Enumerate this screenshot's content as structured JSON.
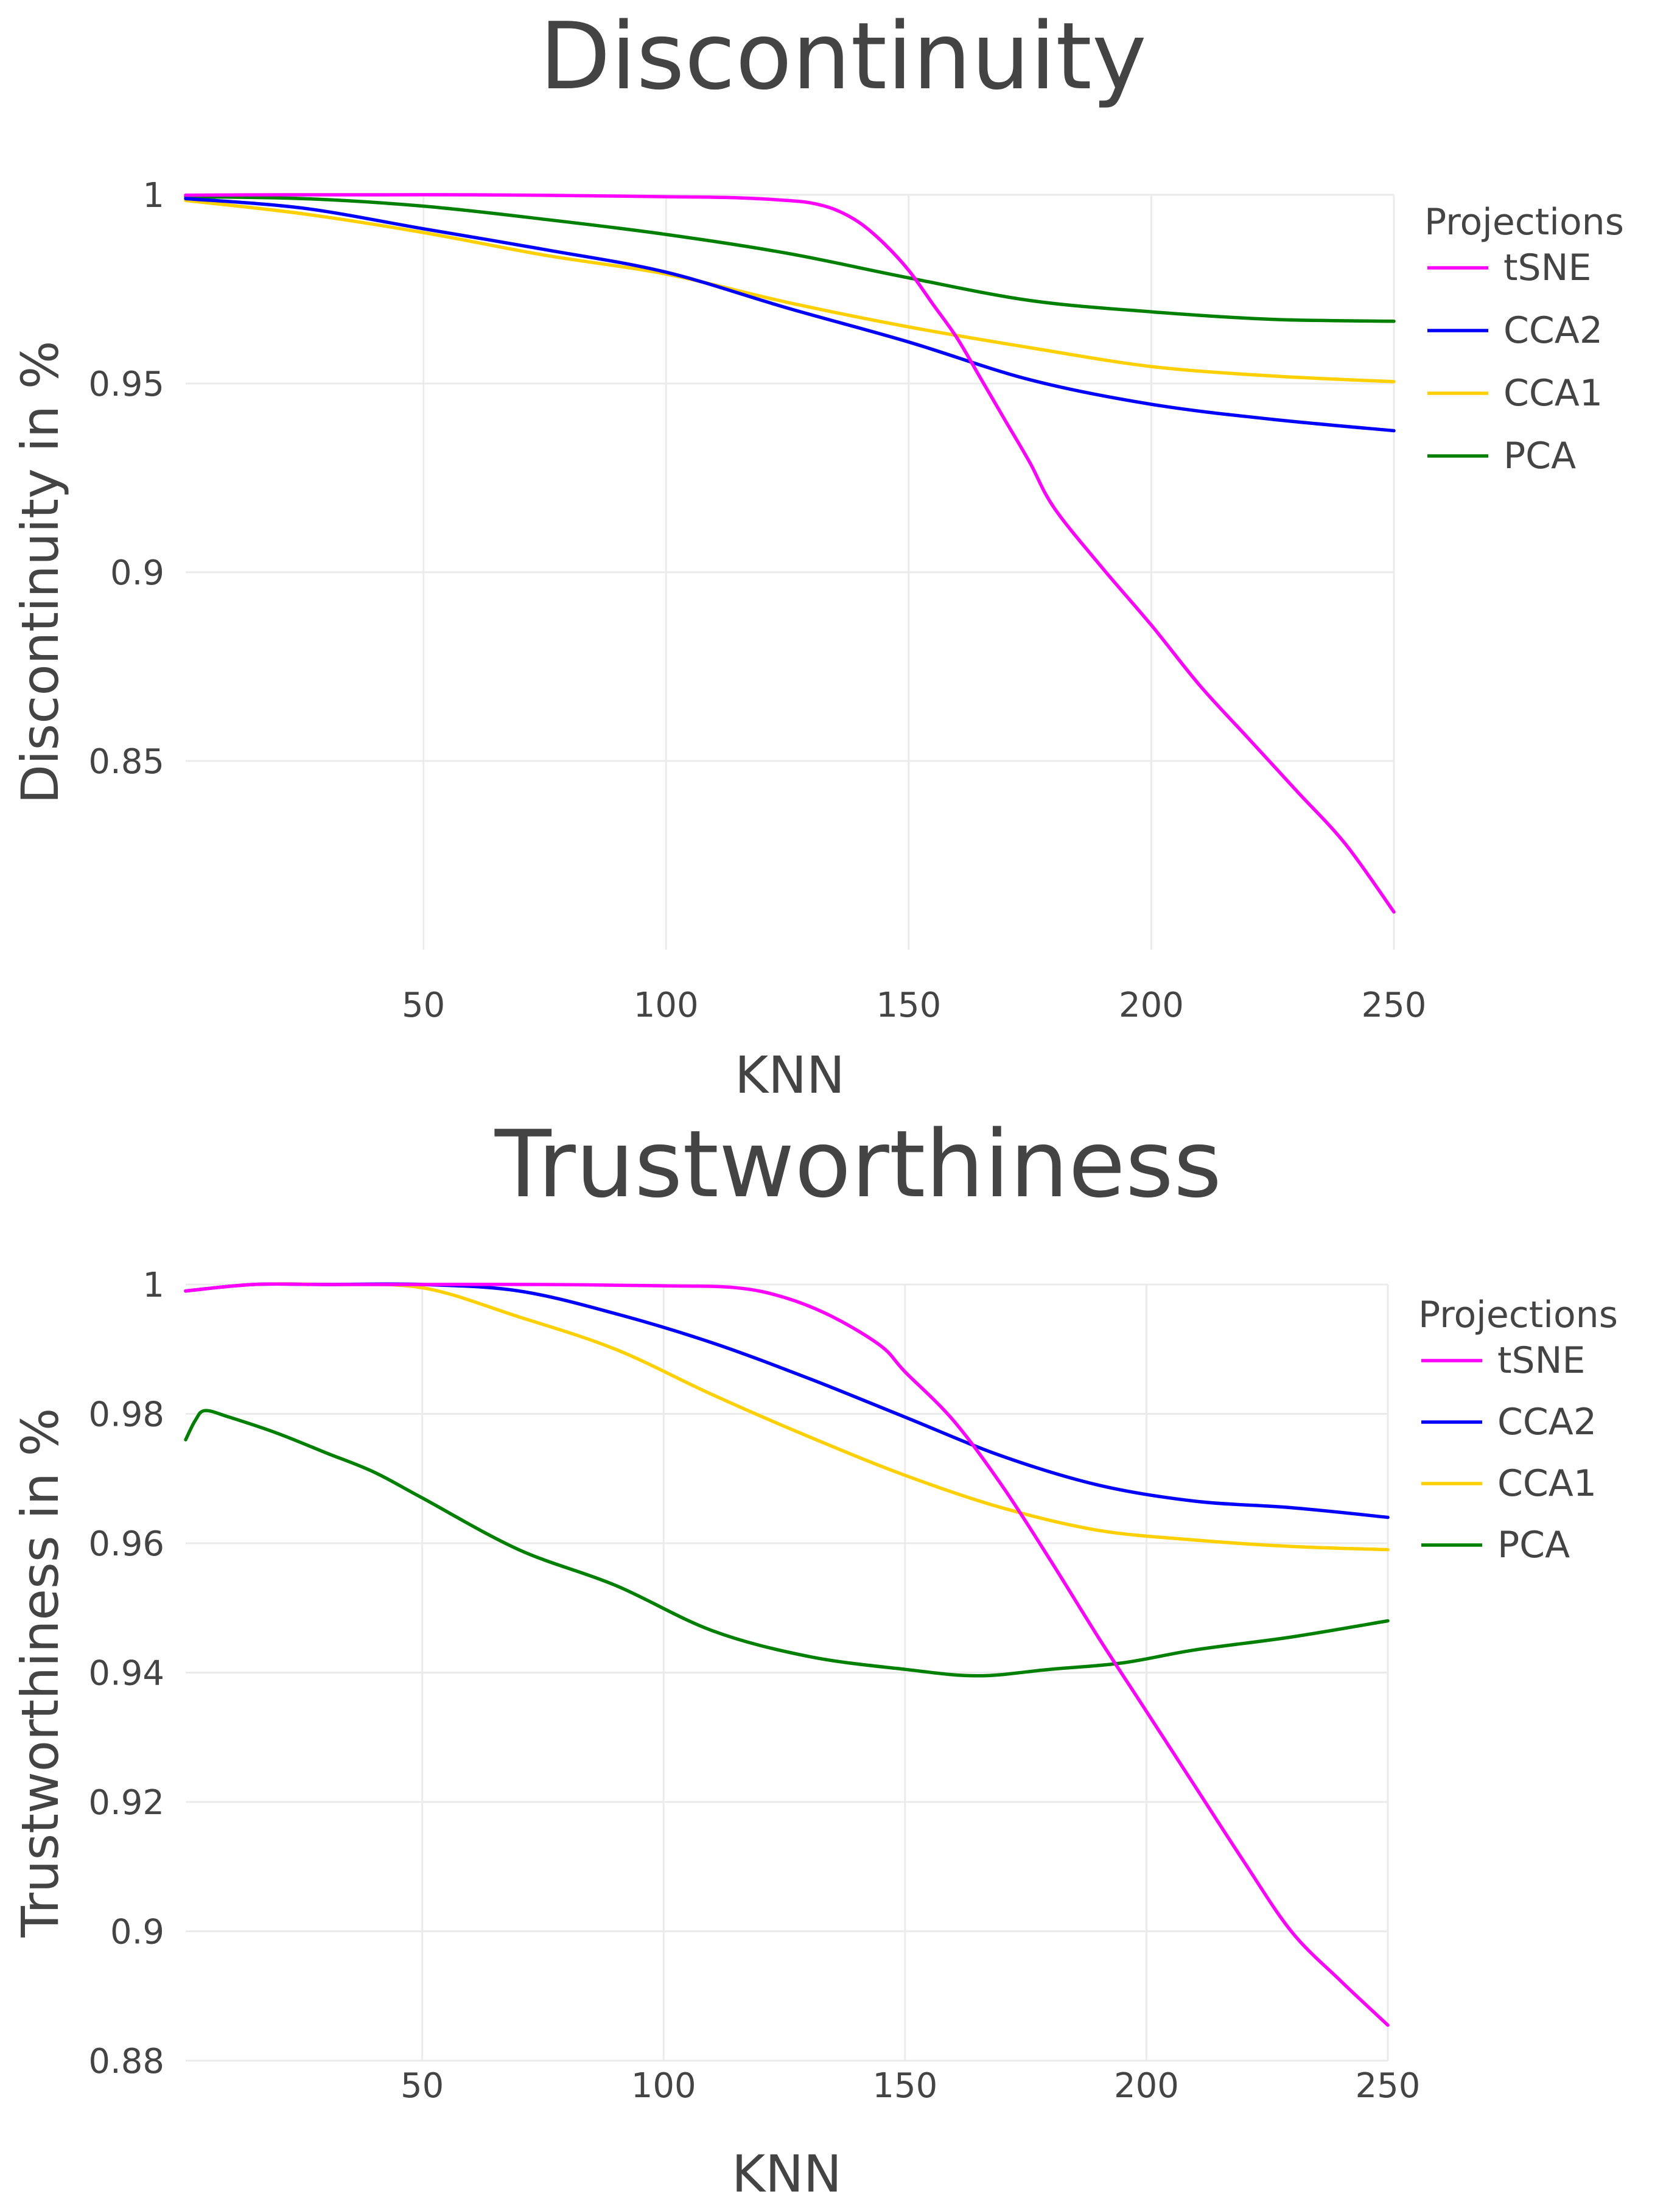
{
  "chart_data": [
    {
      "type": "line",
      "id": "discontinuity",
      "title": "Discontinuity",
      "xlabel": "KNN",
      "ylabel": "Discontinuity in %",
      "xlim": [
        1,
        250
      ],
      "ylim": [
        0.8,
        1.0
      ],
      "x_ticks": [
        50,
        100,
        150,
        200,
        250
      ],
      "x_tick_labels": [
        "50",
        "100",
        "150",
        "200",
        "250"
      ],
      "y_ticks": [
        0.85,
        0.9,
        0.95,
        1.0
      ],
      "y_tick_labels": [
        "0.85",
        "0.9",
        "0.95",
        "1"
      ],
      "grid": true,
      "legend": {
        "title": "Projections",
        "position": "top-right"
      },
      "series": [
        {
          "name": "tSNE",
          "color": "#ff00ff",
          "x": [
            1,
            20,
            40,
            60,
            80,
            100,
            115,
            125,
            130,
            135,
            140,
            145,
            150,
            155,
            160,
            165,
            170,
            175,
            180,
            190,
            200,
            210,
            220,
            230,
            240,
            250
          ],
          "values": [
            0.9999,
            1.0,
            1.0,
            1.0,
            0.9998,
            0.9995,
            0.9992,
            0.9985,
            0.9978,
            0.996,
            0.9925,
            0.987,
            0.98,
            0.971,
            0.962,
            0.951,
            0.94,
            0.929,
            0.917,
            0.901,
            0.886,
            0.87,
            0.856,
            0.842,
            0.828,
            0.81
          ]
        },
        {
          "name": "CCA2",
          "color": "#0000ff",
          "x": [
            1,
            25,
            50,
            75,
            100,
            125,
            150,
            175,
            200,
            225,
            250
          ],
          "values": [
            0.999,
            0.9965,
            0.991,
            0.9855,
            0.9795,
            0.97,
            0.961,
            0.951,
            0.9445,
            0.9405,
            0.9375
          ]
        },
        {
          "name": "CCA1",
          "color": "#ffd000",
          "x": [
            1,
            25,
            50,
            75,
            100,
            125,
            150,
            175,
            200,
            225,
            250
          ],
          "values": [
            0.9985,
            0.995,
            0.99,
            0.984,
            0.979,
            0.9715,
            0.965,
            0.9595,
            0.9545,
            0.952,
            0.9505
          ]
        },
        {
          "name": "PCA",
          "color": "#008000",
          "x": [
            1,
            25,
            50,
            75,
            100,
            125,
            150,
            175,
            200,
            225,
            250
          ],
          "values": [
            0.9995,
            0.999,
            0.997,
            0.9935,
            0.9895,
            0.9845,
            0.978,
            0.972,
            0.969,
            0.967,
            0.9665
          ]
        }
      ]
    },
    {
      "type": "line",
      "id": "trustworthiness",
      "title": "Trustworthiness",
      "xlabel": "KNN",
      "ylabel": "Trustworthiness in %",
      "xlim": [
        1,
        250
      ],
      "ylim": [
        0.88,
        1.0
      ],
      "x_ticks": [
        50,
        100,
        150,
        200,
        250
      ],
      "x_tick_labels": [
        "50",
        "100",
        "150",
        "200",
        "250"
      ],
      "y_ticks": [
        0.88,
        0.9,
        0.92,
        0.94,
        0.96,
        0.98,
        1.0
      ],
      "y_tick_labels": [
        "0.88",
        "0.9",
        "0.92",
        "0.94",
        "0.96",
        "0.98",
        "1"
      ],
      "grid": true,
      "legend": {
        "title": "Projections",
        "position": "top-right"
      },
      "series": [
        {
          "name": "tSNE",
          "color": "#ff00ff",
          "x": [
            1,
            15,
            30,
            50,
            75,
            100,
            115,
            125,
            135,
            145,
            150,
            160,
            170,
            180,
            190,
            200,
            210,
            220,
            230,
            240,
            250
          ],
          "values": [
            0.999,
            1.0,
            1.0,
            1.0,
            1.0,
            0.9998,
            0.9995,
            0.998,
            0.995,
            0.9905,
            0.9865,
            0.979,
            0.969,
            0.9575,
            0.9455,
            0.934,
            0.9225,
            0.911,
            0.9,
            0.8925,
            0.8855
          ]
        },
        {
          "name": "CCA2",
          "color": "#0000ff",
          "x": [
            1,
            15,
            30,
            50,
            70,
            90,
            110,
            130,
            150,
            170,
            190,
            210,
            230,
            250
          ],
          "values": [
            0.999,
            1.0,
            1.0,
            1.0,
            0.999,
            0.9955,
            0.991,
            0.9855,
            0.9795,
            0.9735,
            0.969,
            0.9665,
            0.9655,
            0.964
          ]
        },
        {
          "name": "CCA1",
          "color": "#ffd000",
          "x": [
            1,
            15,
            30,
            50,
            70,
            90,
            110,
            130,
            150,
            170,
            190,
            210,
            230,
            250
          ],
          "values": [
            0.999,
            1.0,
            1.0,
            0.9995,
            0.995,
            0.99,
            0.983,
            0.9765,
            0.9705,
            0.9655,
            0.962,
            0.9605,
            0.9595,
            0.959
          ]
        },
        {
          "name": "PCA",
          "color": "#008000",
          "x": [
            1,
            3,
            5,
            10,
            20,
            30,
            40,
            50,
            70,
            90,
            110,
            130,
            150,
            165,
            180,
            195,
            210,
            230,
            250
          ],
          "values": [
            0.976,
            0.979,
            0.9805,
            0.9795,
            0.977,
            0.974,
            0.971,
            0.967,
            0.959,
            0.9535,
            0.9465,
            0.9425,
            0.9405,
            0.9395,
            0.9405,
            0.9415,
            0.9435,
            0.9455,
            0.948
          ]
        }
      ]
    }
  ]
}
